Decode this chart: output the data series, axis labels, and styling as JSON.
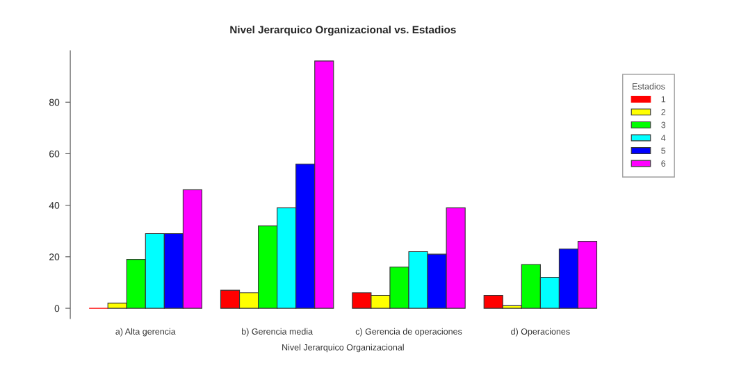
{
  "chart_data": {
    "type": "bar",
    "title": "Nivel Jerarquico Organizacional vs. Estadios",
    "xlabel": "Nivel Jerarquico Organizacional",
    "legend_title": "Estadios",
    "categories": [
      "a) Alta gerencia",
      "b) Gerencia media",
      "c) Gerencia de operaciones",
      "d) Operaciones"
    ],
    "series": [
      {
        "name": "1",
        "color": "#ff0000",
        "values": [
          0,
          7,
          6,
          5
        ]
      },
      {
        "name": "2",
        "color": "#ffff00",
        "values": [
          2,
          6,
          5,
          1
        ]
      },
      {
        "name": "3",
        "color": "#00ff00",
        "values": [
          19,
          32,
          16,
          17
        ]
      },
      {
        "name": "4",
        "color": "#00ffff",
        "values": [
          29,
          39,
          22,
          12
        ]
      },
      {
        "name": "5",
        "color": "#0000ff",
        "values": [
          29,
          56,
          21,
          23
        ]
      },
      {
        "name": "6",
        "color": "#ff00ff",
        "values": [
          46,
          96,
          39,
          26
        ]
      }
    ],
    "ylim": [
      -4,
      100
    ],
    "yticks": [
      0,
      20,
      40,
      60,
      80
    ],
    "grid": false,
    "legend": "right"
  }
}
